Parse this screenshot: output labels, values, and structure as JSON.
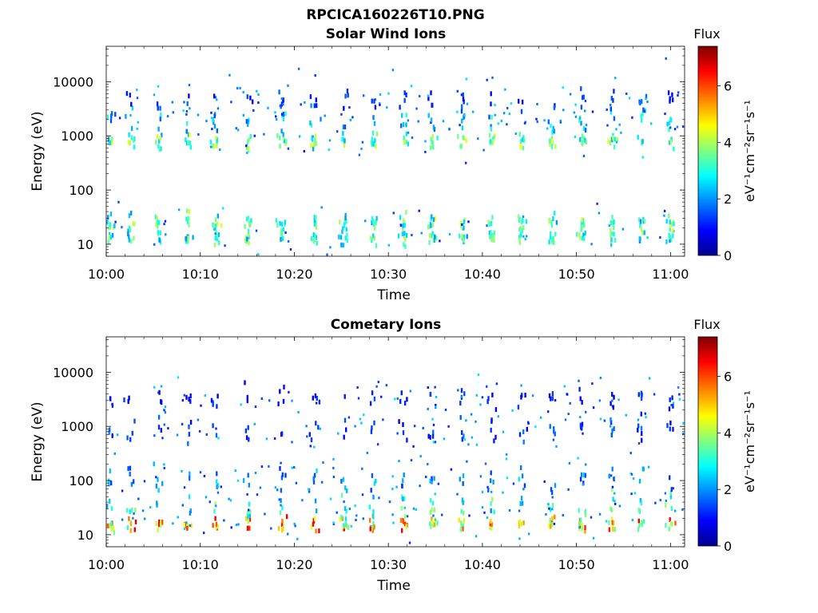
{
  "figure": {
    "title": "RPCICA160226T10.PNG"
  },
  "chart_data": [
    {
      "type": "heatmap",
      "title": "Solar Wind Ions",
      "xlabel": "Time",
      "ylabel": "Energy (eV)",
      "yscale": "log",
      "ylim": [
        6,
        45000
      ],
      "xlim_minutes_after_10_00": [
        0,
        61.5
      ],
      "x_ticks": [
        "10:00",
        "10:10",
        "10:20",
        "10:30",
        "10:40",
        "10:50",
        "11:00"
      ],
      "y_ticks": [
        "10",
        "100",
        "1000",
        "10000"
      ],
      "colorbar": {
        "label": "Flux",
        "unit": "eV⁻¹cm⁻²sr⁻¹s⁻¹",
        "range": [
          0,
          7.4
        ],
        "ticks": [
          "0",
          "2",
          "4",
          "6"
        ],
        "colormap": "jet"
      },
      "pulse_times_minutes": [
        0.3,
        2.5,
        5.5,
        8.6,
        11.5,
        15.0,
        18.6,
        22.0,
        25.2,
        28.3,
        31.5,
        34.6,
        37.8,
        40.9,
        44.1,
        47.3,
        50.5,
        53.7,
        56.8,
        59.9
      ],
      "populations": [
        {
          "energy_eV": 15,
          "peak_flux": 4.1
        },
        {
          "energy_eV": 28,
          "peak_flux": 4.4
        },
        {
          "energy_eV": 850,
          "peak_flux": 4.6
        },
        {
          "energy_eV": 2000,
          "peak_flux": 3.2
        },
        {
          "energy_eV": 5000,
          "peak_flux": 1.8
        }
      ]
    },
    {
      "type": "heatmap",
      "title": "Cometary Ions",
      "xlabel": "Time",
      "ylabel": "Energy (eV)",
      "yscale": "log",
      "ylim": [
        6,
        45000
      ],
      "xlim_minutes_after_10_00": [
        0,
        61.5
      ],
      "x_ticks": [
        "10:00",
        "10:10",
        "10:20",
        "10:30",
        "10:40",
        "10:50",
        "11:00"
      ],
      "y_ticks": [
        "10",
        "100",
        "1000",
        "10000"
      ],
      "colorbar": {
        "label": "Flux",
        "unit": "eV⁻¹cm⁻²sr⁻¹s⁻¹",
        "range": [
          0,
          7.4
        ],
        "ticks": [
          "0",
          "2",
          "4",
          "6"
        ],
        "colormap": "jet"
      },
      "pulse_times_minutes": [
        0.3,
        2.5,
        5.5,
        8.6,
        11.5,
        15.0,
        18.6,
        22.0,
        25.2,
        28.3,
        31.5,
        34.6,
        37.8,
        40.9,
        44.1,
        47.3,
        50.5,
        53.7,
        56.8,
        59.9
      ],
      "populations": [
        {
          "energy_eV": 17,
          "peak_flux": 6.8
        },
        {
          "energy_eV": 35,
          "peak_flux": 4.0
        },
        {
          "energy_eV": 120,
          "peak_flux": 2.6
        },
        {
          "energy_eV": 900,
          "peak_flux": 1.9
        },
        {
          "energy_eV": 3500,
          "peak_flux": 1.5
        }
      ]
    }
  ]
}
